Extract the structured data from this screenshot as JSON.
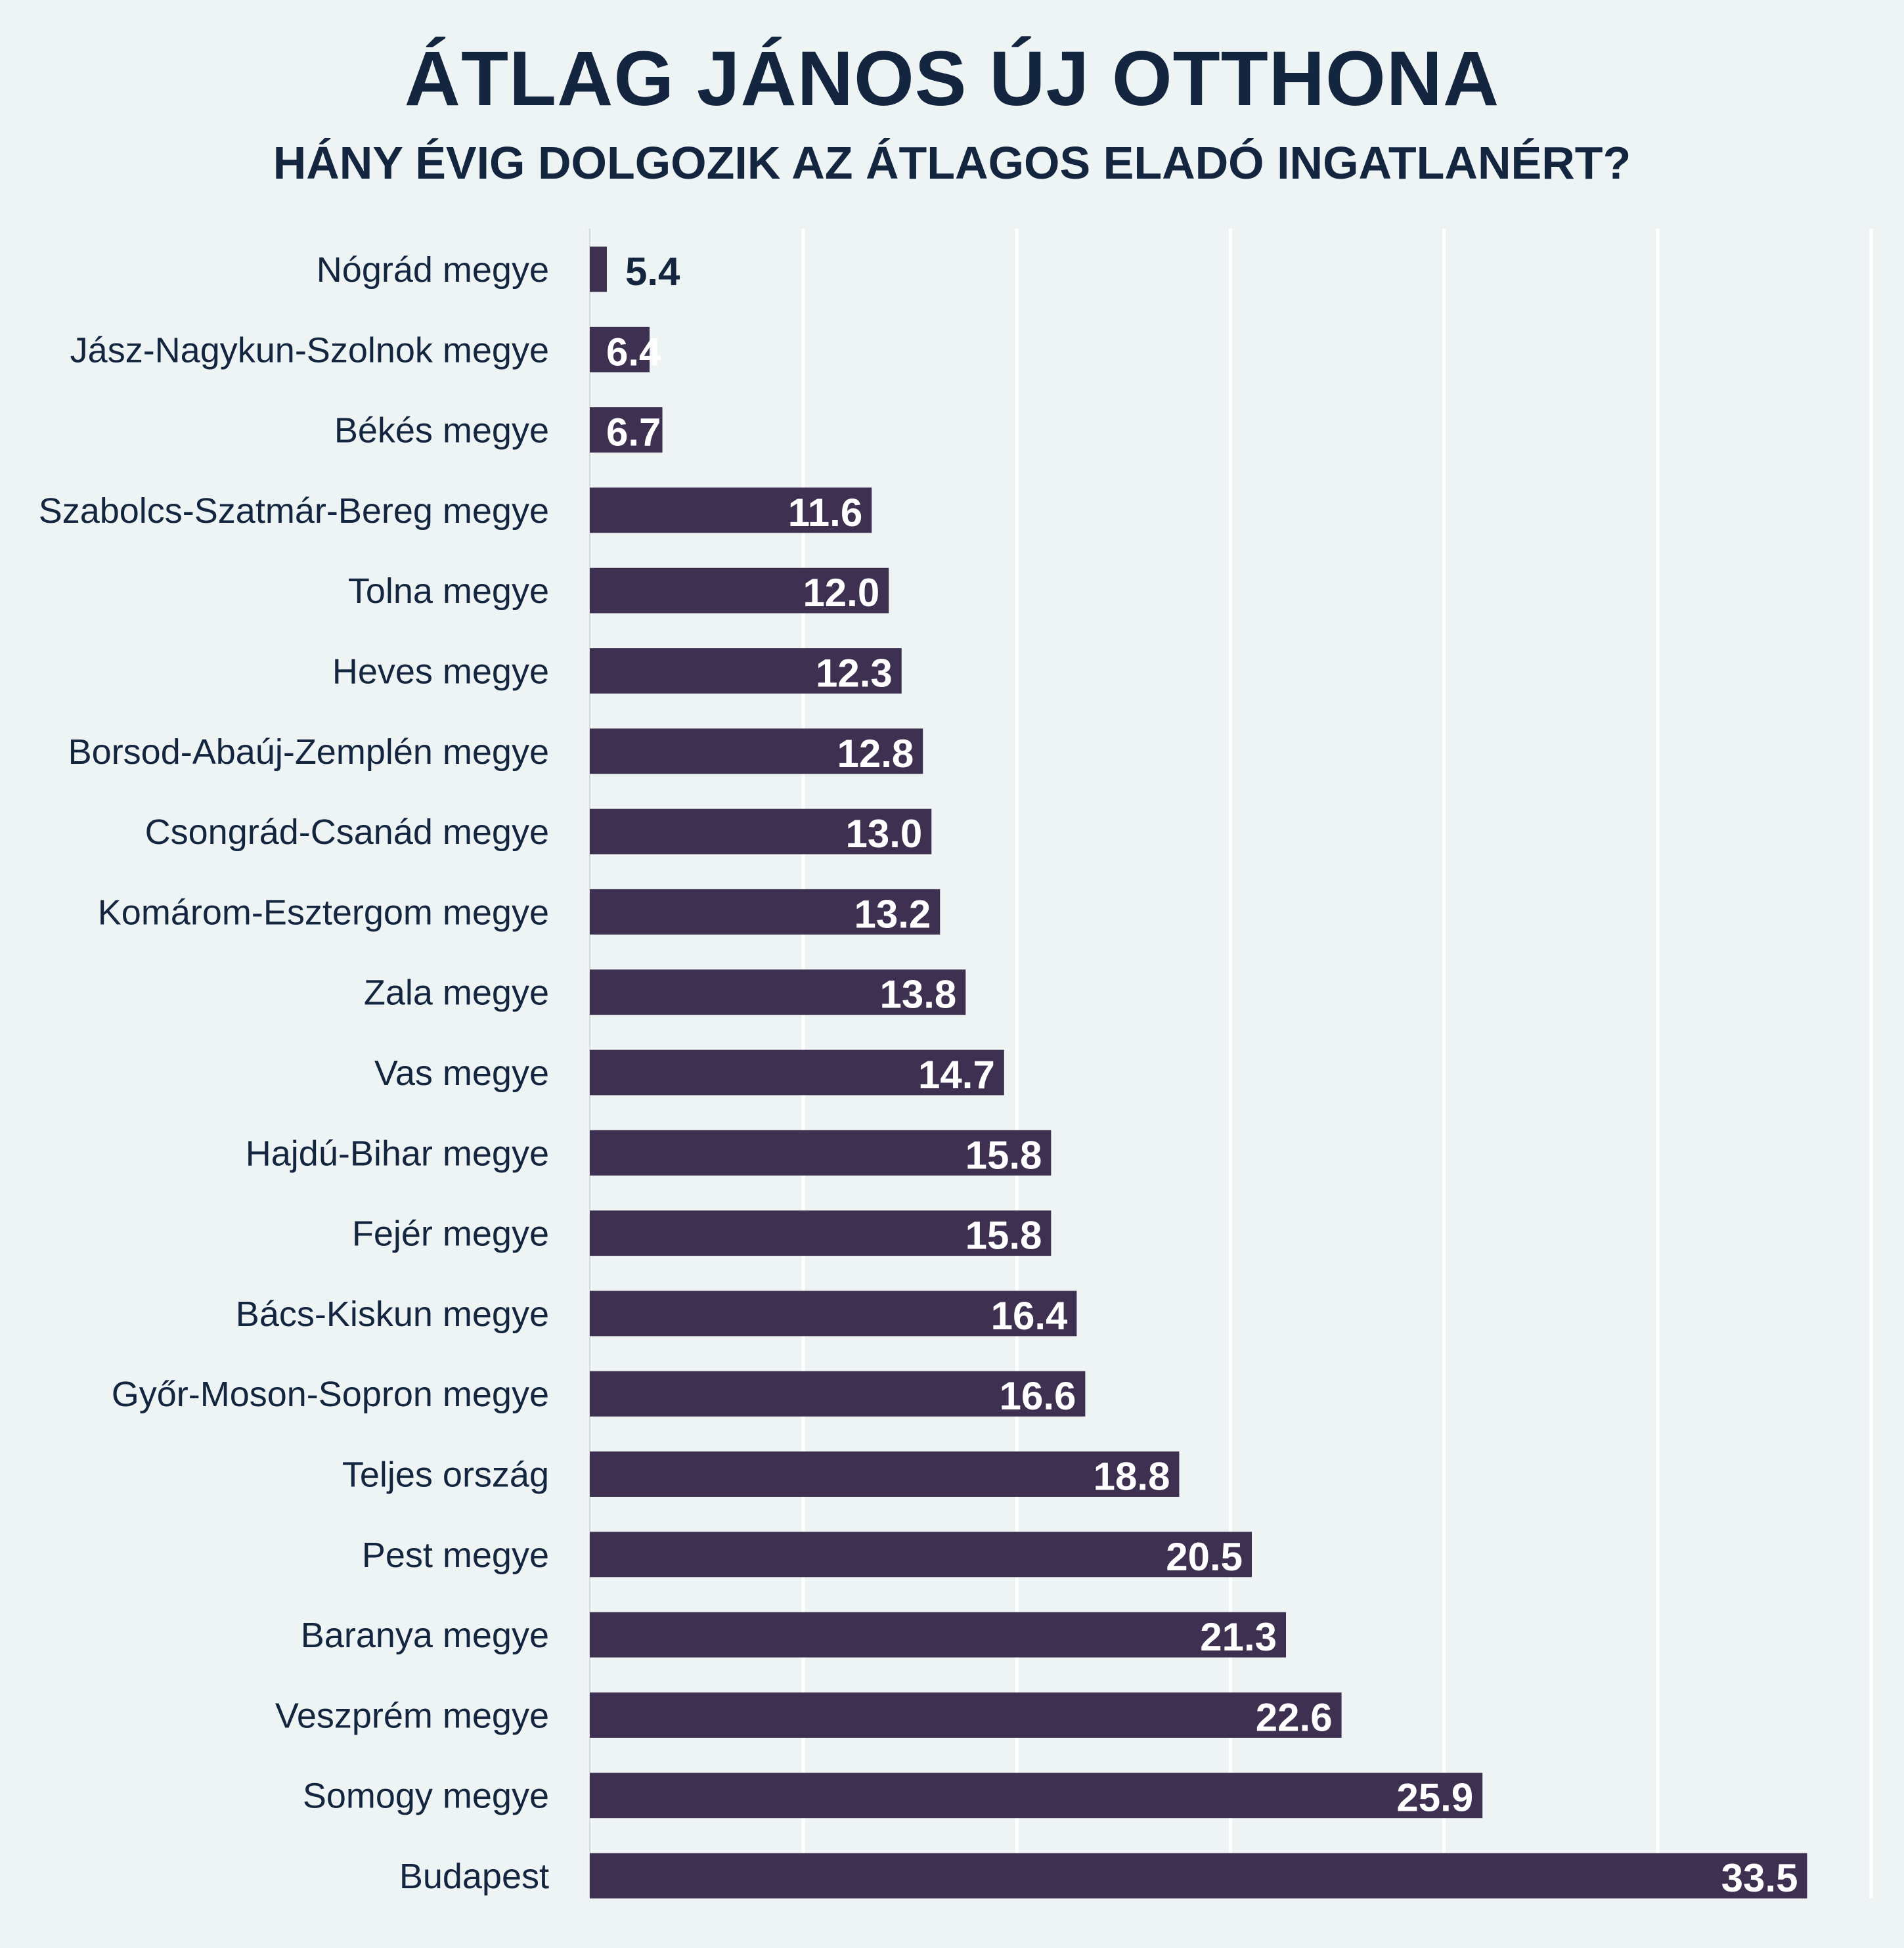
{
  "title": "ÁTLAG JÁNOS ÚJ OTTHONA",
  "subtitle": "HÁNY ÉVIG DOLGOZIK AZ ÁTLAGOS ELADÓ INGATLANÉRT?",
  "colors": {
    "background": "#eef4f4",
    "bar": "#3e3050",
    "text": "#13253f",
    "grid": "#ffffff",
    "value_inside": "#ffffff"
  },
  "chart_data": {
    "type": "bar",
    "orientation": "horizontal",
    "categories": [
      "Nógrád megye",
      "Jász-Nagykun-Szolnok megye",
      "Békés megye",
      "Szabolcs-Szatmár-Bereg megye",
      "Tolna megye",
      "Heves megye",
      "Borsod-Abaúj-Zemplén megye",
      "Csongrád-Csanád megye",
      "Komárom-Esztergom megye",
      "Zala megye",
      "Vas megye",
      "Hajdú-Bihar megye",
      "Fejér megye",
      "Bács-Kiskun megye",
      "Győr-Moson-Sopron megye",
      "Teljes ország",
      "Pest megye",
      "Baranya megye",
      "Veszprém megye",
      "Somogy megye",
      "Budapest"
    ],
    "values": [
      5.4,
      6.4,
      6.7,
      11.6,
      12.0,
      12.3,
      12.8,
      13.0,
      13.2,
      13.8,
      14.7,
      15.8,
      15.8,
      16.4,
      16.6,
      18.8,
      20.5,
      21.3,
      22.6,
      25.9,
      33.5
    ],
    "value_labels": [
      "5.4",
      "6.4",
      "6.7",
      "11.6",
      "12.0",
      "12.3",
      "12.8",
      "13.0",
      "13.2",
      "13.8",
      "14.7",
      "15.8",
      "15.8",
      "16.4",
      "16.6",
      "18.8",
      "20.5",
      "21.3",
      "22.6",
      "25.9",
      "33.5"
    ],
    "xlim": [
      5,
      35
    ],
    "gridlines": [
      5,
      10,
      15,
      20,
      25,
      30,
      35
    ],
    "grid": true,
    "legend": "none",
    "xlabel": "",
    "ylabel": ""
  }
}
